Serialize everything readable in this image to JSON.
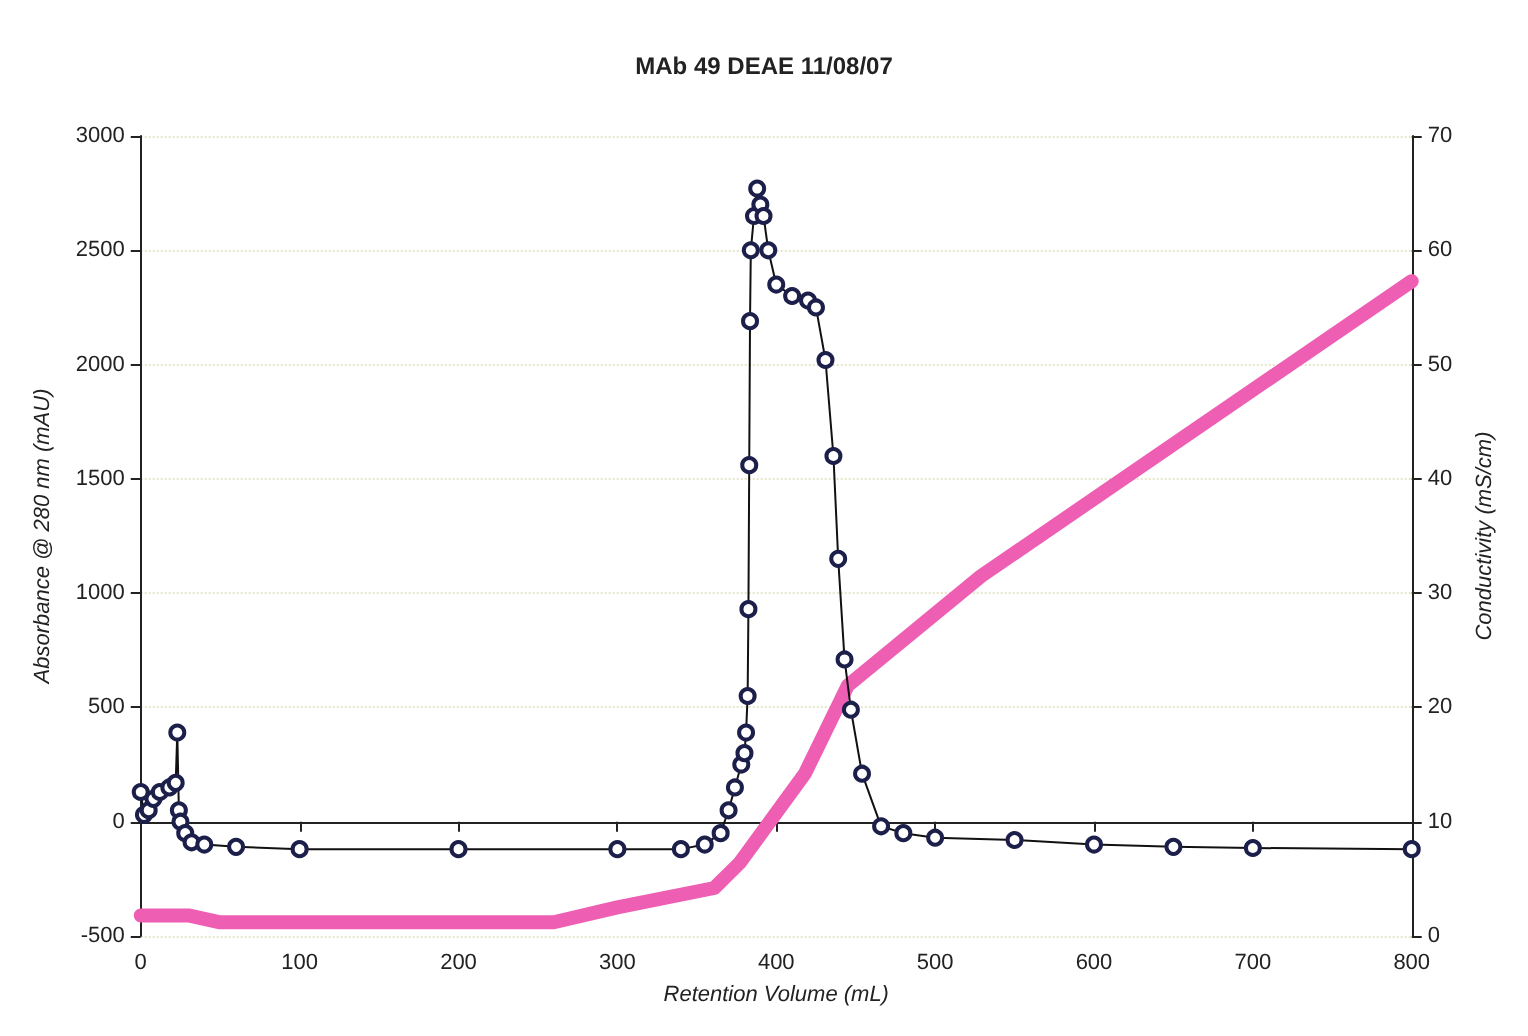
{
  "chart_data": {
    "type": "line",
    "title": "MAb 49 DEAE 11/08/07",
    "xlabel": "Retention Volume (mL)",
    "ylabel": "Absorbance @ 280 nm (mAU)",
    "y2label": "Conductivity (mS/cm)",
    "xlim": [
      0,
      800
    ],
    "xticks": [
      0,
      100,
      200,
      300,
      400,
      500,
      600,
      700,
      800
    ],
    "ylim": [
      -500,
      3000
    ],
    "yticks": [
      -500,
      0,
      500,
      1000,
      1500,
      2000,
      2500,
      3000
    ],
    "y2lim": [
      0,
      70
    ],
    "y2ticks": [
      0,
      10,
      20,
      30,
      40,
      50,
      60,
      70
    ],
    "grid": "y",
    "series": [
      {
        "color": "#1c1f4a",
        "marker": "circle",
        "x": [
          0,
          2,
          5,
          8,
          12,
          18,
          22,
          23,
          24,
          25,
          28,
          32,
          40,
          60,
          100,
          200,
          300,
          340,
          355,
          365,
          370,
          374,
          378,
          380,
          381,
          382,
          382.5,
          383,
          383.5,
          384,
          386,
          388,
          390,
          392,
          395,
          400,
          410,
          420,
          425,
          431,
          436,
          439,
          443,
          447,
          454,
          466,
          480,
          500,
          550,
          600,
          650,
          700,
          800
        ],
        "values": [
          130,
          30,
          50,
          100,
          130,
          150,
          170,
          390,
          50,
          0,
          -50,
          -90,
          -100,
          -110,
          -120,
          -120,
          -120,
          -120,
          -100,
          -50,
          50,
          150,
          250,
          300,
          390,
          550,
          930,
          1560,
          2190,
          2500,
          2650,
          2770,
          2700,
          2650,
          2500,
          2350,
          2300,
          2280,
          2250,
          2020,
          1600,
          1150,
          710,
          490,
          210,
          -20,
          -50,
          -70,
          -80,
          -100,
          -110,
          -115,
          -120
        ]
      },
      {
        "color": "#ee5fb4",
        "marker": "none",
        "axis": "y2",
        "x": [
          0,
          30,
          50,
          200,
          260,
          300,
          361,
          377,
          418,
          445,
          529,
          800
        ],
        "values": [
          1.8,
          1.8,
          1.2,
          1.2,
          1.2,
          2.5,
          4.2,
          6.4,
          14.2,
          21.9,
          31.5,
          57.3
        ]
      }
    ]
  }
}
